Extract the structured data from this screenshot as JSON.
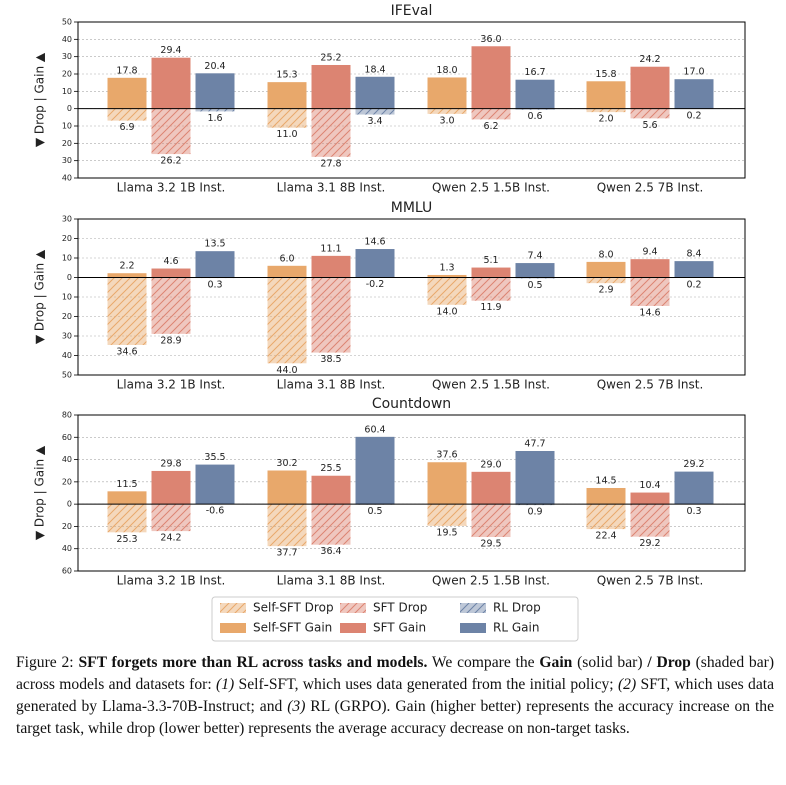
{
  "chart_data": [
    {
      "type": "bar",
      "title": "IFEval",
      "ylabel": "▼ Drop | Gain ▲",
      "categories": [
        "Llama 3.2 1B Inst.",
        "Llama 3.1 8B Inst.",
        "Qwen 2.5 1.5B Inst.",
        "Qwen 2.5 7B Inst."
      ],
      "ylim": [
        -40,
        50
      ],
      "yticks": [
        50,
        40,
        30,
        20,
        10,
        0,
        {
          "value": -10,
          "label": "10"
        },
        {
          "value": -20,
          "label": "20"
        },
        {
          "value": -30,
          "label": "30"
        },
        {
          "value": -40,
          "label": "40"
        }
      ],
      "grid": true,
      "legend": false,
      "series": [
        {
          "color": "#e8a86b",
          "hatch": true,
          "values": [
            -6.9,
            -11.0,
            -3.0,
            -2.0
          ],
          "value_labels": [
            "6.9",
            "11.0",
            "3.0",
            "2.0"
          ]
        },
        {
          "color": "#e8a86b",
          "hatch": false,
          "values": [
            17.8,
            15.3,
            18.0,
            15.8
          ],
          "value_labels": [
            "17.8",
            "15.3",
            "18.0",
            "15.8"
          ]
        },
        {
          "color": "#dc8472",
          "hatch": true,
          "values": [
            -26.2,
            -27.8,
            -6.2,
            -5.6
          ],
          "value_labels": [
            "26.2",
            "27.8",
            "6.2",
            "5.6"
          ]
        },
        {
          "color": "#dc8472",
          "hatch": false,
          "values": [
            29.4,
            25.2,
            36.0,
            24.2
          ],
          "value_labels": [
            "29.4",
            "25.2",
            "36.0",
            "24.2"
          ]
        },
        {
          "color": "#6d83a6",
          "hatch": true,
          "values": [
            -1.6,
            -3.4,
            -0.6,
            -0.2
          ],
          "value_labels": [
            "1.6",
            "3.4",
            "0.6",
            "0.2"
          ]
        },
        {
          "color": "#6d83a6",
          "hatch": false,
          "values": [
            20.4,
            18.4,
            16.7,
            17.0
          ],
          "value_labels": [
            "20.4",
            "18.4",
            "16.7",
            "17.0"
          ]
        }
      ]
    },
    {
      "type": "bar",
      "title": "MMLU",
      "ylabel": "▼ Drop | Gain ▲",
      "categories": [
        "Llama 3.2 1B Inst.",
        "Llama 3.1 8B Inst.",
        "Qwen 2.5 1.5B Inst.",
        "Qwen 2.5 7B Inst."
      ],
      "ylim": [
        -50,
        30
      ],
      "yticks": [
        30,
        20,
        10,
        0,
        {
          "value": -10,
          "label": "10"
        },
        {
          "value": -20,
          "label": "20"
        },
        {
          "value": -30,
          "label": "30"
        },
        {
          "value": -40,
          "label": "40"
        },
        {
          "value": -50,
          "label": "50"
        }
      ],
      "grid": true,
      "legend": false,
      "series": [
        {
          "color": "#e8a86b",
          "hatch": true,
          "values": [
            -34.6,
            -44.0,
            -14.0,
            -2.9
          ],
          "value_labels": [
            "34.6",
            "44.0",
            "14.0",
            "2.9"
          ]
        },
        {
          "color": "#e8a86b",
          "hatch": false,
          "values": [
            2.2,
            6.0,
            1.3,
            8.0
          ],
          "value_labels": [
            "2.2",
            "6.0",
            "1.3",
            "8.0"
          ]
        },
        {
          "color": "#dc8472",
          "hatch": true,
          "values": [
            -28.9,
            -38.5,
            -11.9,
            -14.6
          ],
          "value_labels": [
            "28.9",
            "38.5",
            "11.9",
            "14.6"
          ]
        },
        {
          "color": "#dc8472",
          "hatch": false,
          "values": [
            4.6,
            11.1,
            5.1,
            9.4
          ],
          "value_labels": [
            "4.6",
            "11.1",
            "5.1",
            "9.4"
          ]
        },
        {
          "color": "#6d83a6",
          "hatch": true,
          "values": [
            -0.3,
            0.2,
            -0.5,
            -0.2
          ],
          "value_labels": [
            "0.3",
            "-0.2",
            "0.5",
            "0.2"
          ]
        },
        {
          "color": "#6d83a6",
          "hatch": false,
          "values": [
            13.5,
            14.6,
            7.4,
            8.4
          ],
          "value_labels": [
            "13.5",
            "14.6",
            "7.4",
            "8.4"
          ]
        }
      ]
    },
    {
      "type": "bar",
      "title": "Countdown",
      "ylabel": "▼ Drop | Gain ▲",
      "categories": [
        "Llama 3.2 1B Inst.",
        "Llama 3.1 8B Inst.",
        "Qwen 2.5 1.5B Inst.",
        "Qwen 2.5 7B Inst."
      ],
      "ylim": [
        -60,
        80
      ],
      "yticks": [
        80,
        60,
        40,
        20,
        0,
        {
          "value": -20,
          "label": "20"
        },
        {
          "value": -40,
          "label": "40"
        },
        {
          "value": -60,
          "label": "60"
        }
      ],
      "grid": true,
      "legend": true,
      "series": [
        {
          "name": "Self-SFT Drop",
          "color": "#e8a86b",
          "hatch": true,
          "values": [
            -25.3,
            -37.7,
            -19.5,
            -22.4
          ],
          "value_labels": [
            "25.3",
            "37.7",
            "19.5",
            "22.4"
          ]
        },
        {
          "name": "Self-SFT Gain",
          "color": "#e8a86b",
          "hatch": false,
          "values": [
            11.5,
            30.2,
            37.6,
            14.5
          ],
          "value_labels": [
            "11.5",
            "30.2",
            "37.6",
            "14.5"
          ]
        },
        {
          "name": "SFT Drop",
          "color": "#dc8472",
          "hatch": true,
          "values": [
            -24.2,
            -36.4,
            -29.5,
            -29.2
          ],
          "value_labels": [
            "24.2",
            "36.4",
            "29.5",
            "29.2"
          ]
        },
        {
          "name": "SFT Gain",
          "color": "#dc8472",
          "hatch": false,
          "values": [
            29.8,
            25.5,
            29.0,
            10.4
          ],
          "value_labels": [
            "29.8",
            "25.5",
            "29.0",
            "10.4"
          ]
        },
        {
          "name": "RL Drop",
          "color": "#6d83a6",
          "hatch": true,
          "values": [
            0.6,
            -0.5,
            -0.9,
            -0.3
          ],
          "value_labels": [
            "-0.6",
            "0.5",
            "0.9",
            "0.3"
          ]
        },
        {
          "name": "RL Gain",
          "color": "#6d83a6",
          "hatch": false,
          "values": [
            35.5,
            60.4,
            47.7,
            29.2
          ],
          "value_labels": [
            "35.5",
            "60.4",
            "47.7",
            "29.2"
          ]
        }
      ]
    }
  ],
  "caption": [
    {
      "text": "Figure 2: "
    },
    {
      "text": "SFT forgets more than RL across tasks and models.",
      "bold": true
    },
    {
      "text": " We compare the "
    },
    {
      "text": "Gain",
      "bold": true
    },
    {
      "text": " (solid bar) "
    },
    {
      "text": "/ Drop",
      "bold": true
    },
    {
      "text": " (shaded bar) across models and datasets for: "
    },
    {
      "text": "(1)",
      "italic": true
    },
    {
      "text": " Self-SFT, which uses data generated from the initial policy; "
    },
    {
      "text": "(2)",
      "italic": true
    },
    {
      "text": " SFT, which uses data generated by Llama-3.3-70B-Instruct; and "
    },
    {
      "text": "(3)",
      "italic": true
    },
    {
      "text": " RL (GRPO). Gain (higher better) represents the accuracy increase on the target task, while drop (lower better) represents the average accuracy decrease on non-target tasks."
    }
  ]
}
